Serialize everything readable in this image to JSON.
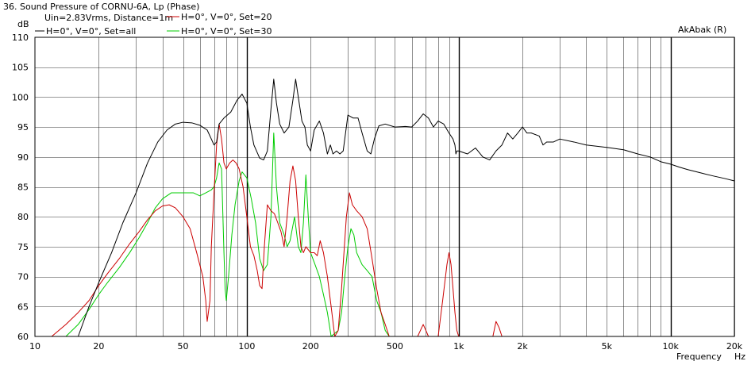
{
  "chart_data": {
    "type": "line",
    "title": "36. Sound Pressure of CORNU-6A, Lp (Phase)",
    "legend_header": "Uin=2.83Vrms, Distance=1m",
    "watermark": "AkAbak (R)",
    "ylabel": "dB",
    "xlabel": "Frequency",
    "xunit": "Hz",
    "xscale": "log",
    "xlim": [
      10,
      20000
    ],
    "ylim": [
      60,
      110
    ],
    "grid": true,
    "legend_placement": "top-left",
    "x_ticks": [
      {
        "v": 10,
        "label": "10"
      },
      {
        "v": 20,
        "label": "20"
      },
      {
        "v": 50,
        "label": "50"
      },
      {
        "v": 100,
        "label": "100"
      },
      {
        "v": 200,
        "label": "200"
      },
      {
        "v": 500,
        "label": "500"
      },
      {
        "v": 1000,
        "label": "1k"
      },
      {
        "v": 2000,
        "label": "2k"
      },
      {
        "v": 5000,
        "label": "5k"
      },
      {
        "v": 10000,
        "label": "10k"
      },
      {
        "v": 20000,
        "label": "20k"
      }
    ],
    "y_ticks": [
      {
        "v": 60,
        "label": "60"
      },
      {
        "v": 65,
        "label": "65"
      },
      {
        "v": 70,
        "label": "70"
      },
      {
        "v": 75,
        "label": "75"
      },
      {
        "v": 80,
        "label": "80"
      },
      {
        "v": 85,
        "label": "85"
      },
      {
        "v": 90,
        "label": "90"
      },
      {
        "v": 95,
        "label": "95"
      },
      {
        "v": 100,
        "label": "100"
      },
      {
        "v": 105,
        "label": "105"
      },
      {
        "v": 110,
        "label": "110"
      }
    ],
    "series": [
      {
        "name": "H=0°, V=0°, Set=all",
        "color": "#000000",
        "points": [
          [
            16,
            60
          ],
          [
            18,
            65
          ],
          [
            20,
            69
          ],
          [
            23,
            74
          ],
          [
            26,
            79
          ],
          [
            30,
            84
          ],
          [
            34,
            89
          ],
          [
            38,
            92.5
          ],
          [
            42,
            94.5
          ],
          [
            46,
            95.5
          ],
          [
            50,
            95.8
          ],
          [
            55,
            95.7
          ],
          [
            60,
            95.3
          ],
          [
            65,
            94.5
          ],
          [
            68,
            93
          ],
          [
            70,
            92
          ],
          [
            72,
            92.5
          ],
          [
            74,
            95.5
          ],
          [
            78,
            96.5
          ],
          [
            84,
            97.5
          ],
          [
            90,
            99.5
          ],
          [
            95,
            100.5
          ],
          [
            100,
            99
          ],
          [
            104,
            95
          ],
          [
            108,
            92
          ],
          [
            115,
            89.8
          ],
          [
            120,
            89.5
          ],
          [
            125,
            91
          ],
          [
            130,
            98
          ],
          [
            134,
            103
          ],
          [
            138,
            99
          ],
          [
            143,
            95.5
          ],
          [
            150,
            94
          ],
          [
            158,
            95
          ],
          [
            165,
            99.5
          ],
          [
            170,
            103
          ],
          [
            175,
            100
          ],
          [
            182,
            96
          ],
          [
            188,
            95
          ],
          [
            193,
            92
          ],
          [
            200,
            91
          ],
          [
            208,
            94.5
          ],
          [
            220,
            96
          ],
          [
            230,
            94
          ],
          [
            240,
            90.5
          ],
          [
            248,
            92
          ],
          [
            255,
            90.5
          ],
          [
            265,
            91
          ],
          [
            275,
            90.5
          ],
          [
            285,
            91
          ],
          [
            300,
            97
          ],
          [
            318,
            96.5
          ],
          [
            335,
            96.5
          ],
          [
            350,
            94
          ],
          [
            370,
            91
          ],
          [
            385,
            90.5
          ],
          [
            400,
            93
          ],
          [
            420,
            95.2
          ],
          [
            450,
            95.5
          ],
          [
            500,
            95
          ],
          [
            560,
            95.1
          ],
          [
            600,
            95
          ],
          [
            640,
            96
          ],
          [
            680,
            97.2
          ],
          [
            720,
            96.5
          ],
          [
            760,
            95
          ],
          [
            800,
            96
          ],
          [
            850,
            95.5
          ],
          [
            900,
            94
          ],
          [
            940,
            93
          ],
          [
            960,
            92
          ],
          [
            970,
            90.5
          ],
          [
            980,
            91
          ],
          [
            1000,
            91
          ],
          [
            1100,
            90.5
          ],
          [
            1200,
            91.5
          ],
          [
            1300,
            90
          ],
          [
            1400,
            89.5
          ],
          [
            1500,
            91
          ],
          [
            1600,
            92
          ],
          [
            1700,
            94
          ],
          [
            1800,
            93
          ],
          [
            1900,
            94
          ],
          [
            2000,
            95
          ],
          [
            2100,
            94
          ],
          [
            2200,
            94
          ],
          [
            2400,
            93.5
          ],
          [
            2500,
            92
          ],
          [
            2600,
            92.5
          ],
          [
            2800,
            92.5
          ],
          [
            3000,
            93
          ],
          [
            3500,
            92.5
          ],
          [
            4000,
            92
          ],
          [
            5000,
            91.6
          ],
          [
            6000,
            91.2
          ],
          [
            7000,
            90.5
          ],
          [
            8000,
            90
          ],
          [
            9000,
            89.2
          ],
          [
            10000,
            88.8
          ],
          [
            11000,
            88.3
          ],
          [
            12000,
            87.9
          ],
          [
            14000,
            87.3
          ],
          [
            16000,
            86.8
          ],
          [
            18000,
            86.4
          ],
          [
            20000,
            86
          ]
        ]
      },
      {
        "name": "H=0°, V=0°, Set=20",
        "color": "#cc0000",
        "points": [
          [
            12,
            60
          ],
          [
            14,
            62
          ],
          [
            16,
            64
          ],
          [
            18,
            66
          ],
          [
            20,
            68.5
          ],
          [
            22,
            70.5
          ],
          [
            25,
            73
          ],
          [
            28,
            75.5
          ],
          [
            31,
            77.5
          ],
          [
            34,
            79.5
          ],
          [
            37,
            81
          ],
          [
            40,
            81.8
          ],
          [
            43,
            82
          ],
          [
            46,
            81.5
          ],
          [
            50,
            80
          ],
          [
            54,
            78
          ],
          [
            58,
            74
          ],
          [
            62,
            70
          ],
          [
            64,
            66
          ],
          [
            65,
            62.5
          ],
          [
            67,
            66
          ],
          [
            68,
            75
          ],
          [
            70,
            84
          ],
          [
            72,
            92
          ],
          [
            74,
            95.5
          ],
          [
            76,
            93
          ],
          [
            78,
            89
          ],
          [
            80,
            88
          ],
          [
            83,
            89
          ],
          [
            86,
            89.5
          ],
          [
            89,
            89
          ],
          [
            92,
            88
          ],
          [
            96,
            85
          ],
          [
            100,
            80
          ],
          [
            104,
            75
          ],
          [
            108,
            73.5
          ],
          [
            112,
            71
          ],
          [
            115,
            68.5
          ],
          [
            118,
            68
          ],
          [
            121,
            75
          ],
          [
            125,
            82
          ],
          [
            130,
            81
          ],
          [
            135,
            80.5
          ],
          [
            140,
            79
          ],
          [
            145,
            77.5
          ],
          [
            150,
            75
          ],
          [
            155,
            80
          ],
          [
            160,
            86
          ],
          [
            165,
            88.5
          ],
          [
            170,
            86
          ],
          [
            175,
            80
          ],
          [
            180,
            75
          ],
          [
            185,
            74
          ],
          [
            190,
            75
          ],
          [
            200,
            74
          ],
          [
            208,
            74
          ],
          [
            215,
            73.5
          ],
          [
            222,
            76
          ],
          [
            230,
            74
          ],
          [
            240,
            70
          ],
          [
            250,
            65
          ],
          [
            260,
            60
          ],
          [
            270,
            61
          ],
          [
            280,
            68
          ],
          [
            295,
            80
          ],
          [
            305,
            84
          ],
          [
            315,
            82
          ],
          [
            330,
            81
          ],
          [
            350,
            80
          ],
          [
            370,
            78
          ],
          [
            390,
            73
          ],
          [
            410,
            68
          ],
          [
            430,
            64
          ],
          [
            450,
            62
          ],
          [
            470,
            60
          ],
          [
            500,
            60
          ],
          [
            640,
            60
          ],
          [
            680,
            62
          ],
          [
            700,
            61
          ],
          [
            720,
            60
          ],
          [
            760,
            60
          ],
          [
            800,
            60
          ],
          [
            840,
            66
          ],
          [
            880,
            72
          ],
          [
            900,
            74
          ],
          [
            920,
            72
          ],
          [
            940,
            68
          ],
          [
            960,
            64
          ],
          [
            980,
            61
          ],
          [
            1000,
            60
          ],
          [
            1450,
            60
          ],
          [
            1500,
            62.5
          ],
          [
            1550,
            61.5
          ],
          [
            1600,
            60
          ],
          [
            20000,
            60
          ]
        ]
      },
      {
        "name": "H=0°, V=0°, Set=30",
        "color": "#00cc00",
        "points": [
          [
            14,
            60
          ],
          [
            16,
            62
          ],
          [
            18,
            64.5
          ],
          [
            20,
            67
          ],
          [
            22,
            69
          ],
          [
            25,
            71.5
          ],
          [
            28,
            74
          ],
          [
            31,
            76.5
          ],
          [
            34,
            79
          ],
          [
            37,
            81.5
          ],
          [
            40,
            83
          ],
          [
            44,
            84
          ],
          [
            48,
            84
          ],
          [
            52,
            84
          ],
          [
            56,
            84
          ],
          [
            60,
            83.5
          ],
          [
            64,
            84
          ],
          [
            68,
            84.5
          ],
          [
            70,
            85
          ],
          [
            72,
            86.5
          ],
          [
            74,
            89
          ],
          [
            76,
            88
          ],
          [
            78,
            74
          ],
          [
            79,
            68
          ],
          [
            80,
            66
          ],
          [
            82,
            70
          ],
          [
            85,
            77
          ],
          [
            88,
            82
          ],
          [
            92,
            86
          ],
          [
            95,
            87.5
          ],
          [
            100,
            86.5
          ],
          [
            105,
            83
          ],
          [
            110,
            79
          ],
          [
            115,
            73
          ],
          [
            120,
            71
          ],
          [
            125,
            72
          ],
          [
            130,
            80
          ],
          [
            134,
            94
          ],
          [
            138,
            85
          ],
          [
            143,
            79
          ],
          [
            150,
            77
          ],
          [
            155,
            75
          ],
          [
            160,
            76
          ],
          [
            168,
            80
          ],
          [
            175,
            75
          ],
          [
            180,
            74
          ],
          [
            185,
            79
          ],
          [
            190,
            87
          ],
          [
            195,
            80
          ],
          [
            200,
            74
          ],
          [
            210,
            72
          ],
          [
            220,
            70
          ],
          [
            230,
            67
          ],
          [
            240,
            64
          ],
          [
            250,
            60
          ],
          [
            270,
            61
          ],
          [
            280,
            64
          ],
          [
            290,
            70
          ],
          [
            300,
            75
          ],
          [
            310,
            78
          ],
          [
            320,
            77
          ],
          [
            330,
            74
          ],
          [
            350,
            72
          ],
          [
            370,
            71
          ],
          [
            390,
            70
          ],
          [
            410,
            66
          ],
          [
            430,
            64
          ],
          [
            450,
            61
          ],
          [
            470,
            60
          ],
          [
            20000,
            60
          ]
        ]
      }
    ]
  }
}
